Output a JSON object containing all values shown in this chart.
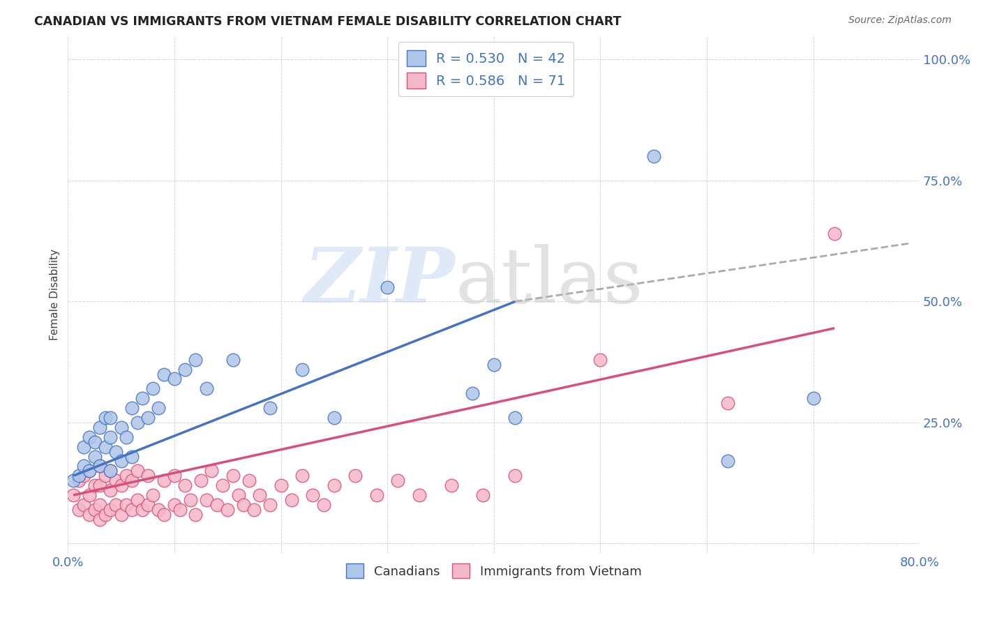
{
  "title": "CANADIAN VS IMMIGRANTS FROM VIETNAM FEMALE DISABILITY CORRELATION CHART",
  "source": "Source: ZipAtlas.com",
  "ylabel": "Female Disability",
  "ymin": -0.02,
  "ymax": 1.05,
  "xmin": 0.0,
  "xmax": 0.8,
  "legend_r1": "R = 0.530",
  "legend_n1": "N = 42",
  "legend_r2": "R = 0.586",
  "legend_n2": "N = 71",
  "color_canadian_face": "#aec6e8",
  "color_canadian_edge": "#4472c4",
  "color_vietnam_face": "#f5b8c8",
  "color_vietnam_edge": "#d94f7a",
  "color_line_canadian": "#4472c4",
  "color_line_vietnam": "#d94f7a",
  "color_axis_blue": "#4472c4",
  "color_title": "#222222",
  "background_color": "#ffffff",
  "grid_color": "#cccccc",
  "canadians_x": [
    0.005,
    0.01,
    0.015,
    0.015,
    0.02,
    0.02,
    0.025,
    0.025,
    0.03,
    0.03,
    0.035,
    0.035,
    0.04,
    0.04,
    0.04,
    0.045,
    0.05,
    0.05,
    0.055,
    0.06,
    0.06,
    0.065,
    0.07,
    0.075,
    0.08,
    0.085,
    0.09,
    0.1,
    0.11,
    0.12,
    0.13,
    0.155,
    0.19,
    0.22,
    0.25,
    0.3,
    0.38,
    0.4,
    0.42,
    0.55,
    0.62,
    0.7
  ],
  "canadians_y": [
    0.13,
    0.14,
    0.16,
    0.2,
    0.15,
    0.22,
    0.18,
    0.21,
    0.16,
    0.24,
    0.2,
    0.26,
    0.15,
    0.22,
    0.26,
    0.19,
    0.17,
    0.24,
    0.22,
    0.18,
    0.28,
    0.25,
    0.3,
    0.26,
    0.32,
    0.28,
    0.35,
    0.34,
    0.36,
    0.38,
    0.32,
    0.38,
    0.28,
    0.36,
    0.26,
    0.53,
    0.31,
    0.37,
    0.26,
    0.8,
    0.17,
    0.3
  ],
  "vietnam_x": [
    0.005,
    0.01,
    0.01,
    0.015,
    0.015,
    0.02,
    0.02,
    0.02,
    0.025,
    0.025,
    0.03,
    0.03,
    0.03,
    0.03,
    0.035,
    0.035,
    0.04,
    0.04,
    0.04,
    0.045,
    0.045,
    0.05,
    0.05,
    0.055,
    0.055,
    0.06,
    0.06,
    0.065,
    0.065,
    0.07,
    0.075,
    0.075,
    0.08,
    0.085,
    0.09,
    0.09,
    0.1,
    0.1,
    0.105,
    0.11,
    0.115,
    0.12,
    0.125,
    0.13,
    0.135,
    0.14,
    0.145,
    0.15,
    0.155,
    0.16,
    0.165,
    0.17,
    0.175,
    0.18,
    0.19,
    0.2,
    0.21,
    0.22,
    0.23,
    0.24,
    0.25,
    0.27,
    0.29,
    0.31,
    0.33,
    0.36,
    0.39,
    0.42,
    0.5,
    0.62,
    0.72
  ],
  "vietnam_y": [
    0.1,
    0.07,
    0.13,
    0.08,
    0.14,
    0.06,
    0.1,
    0.15,
    0.07,
    0.12,
    0.05,
    0.08,
    0.12,
    0.16,
    0.06,
    0.14,
    0.07,
    0.11,
    0.15,
    0.08,
    0.13,
    0.06,
    0.12,
    0.08,
    0.14,
    0.07,
    0.13,
    0.09,
    0.15,
    0.07,
    0.08,
    0.14,
    0.1,
    0.07,
    0.06,
    0.13,
    0.08,
    0.14,
    0.07,
    0.12,
    0.09,
    0.06,
    0.13,
    0.09,
    0.15,
    0.08,
    0.12,
    0.07,
    0.14,
    0.1,
    0.08,
    0.13,
    0.07,
    0.1,
    0.08,
    0.12,
    0.09,
    0.14,
    0.1,
    0.08,
    0.12,
    0.14,
    0.1,
    0.13,
    0.1,
    0.12,
    0.1,
    0.14,
    0.38,
    0.29,
    0.64
  ],
  "canadian_line_x": [
    0.005,
    0.42
  ],
  "canadian_line_y": [
    0.14,
    0.5
  ],
  "vietnam_line_x": [
    0.005,
    0.72
  ],
  "vietnam_line_y": [
    0.1,
    0.445
  ],
  "dash_line_x": [
    0.42,
    0.79
  ],
  "dash_line_y": [
    0.5,
    0.62
  ]
}
